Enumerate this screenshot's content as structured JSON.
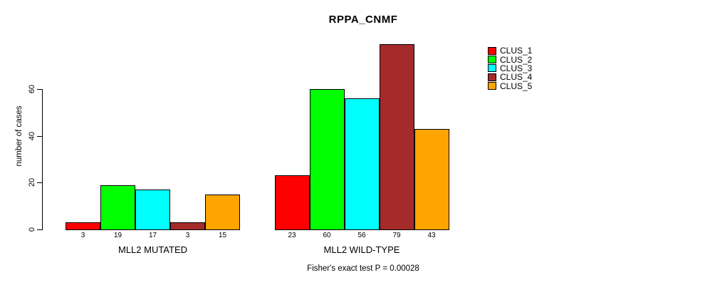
{
  "title": "RPPA_CNMF",
  "y_axis": {
    "label": "number of cases",
    "tick_labels": [
      "0",
      "20",
      "40",
      "60"
    ]
  },
  "footer": {
    "caption": "Fisher's exact test P = 0.00028"
  },
  "legend": {
    "entries": [
      {
        "label": "CLUS_1",
        "color": "#FF0000"
      },
      {
        "label": "CLUS_2",
        "color": "#00FF00"
      },
      {
        "label": "CLUS_3",
        "color": "#00FFFF"
      },
      {
        "label": "CLUS_4",
        "color": "#A52A2A"
      },
      {
        "label": "CLUS_5",
        "color": "#FFA500"
      }
    ]
  },
  "chart_data": {
    "type": "bar",
    "title": "RPPA_CNMF",
    "ylabel": "number of cases",
    "xlabel": "",
    "yticks": [
      0,
      20,
      40,
      60
    ],
    "ylim": [
      0,
      80
    ],
    "grid": false,
    "legend_position": "top-right",
    "categories": [
      "MLL2 MUTATED",
      "MLL2 WILD-TYPE"
    ],
    "series": [
      {
        "name": "CLUS_1",
        "color": "#FF0000",
        "values": [
          3,
          23
        ]
      },
      {
        "name": "CLUS_2",
        "color": "#00FF00",
        "values": [
          19,
          60
        ]
      },
      {
        "name": "CLUS_3",
        "color": "#00FFFF",
        "values": [
          17,
          56
        ]
      },
      {
        "name": "CLUS_4",
        "color": "#A52A2A",
        "values": [
          3,
          79
        ]
      },
      {
        "name": "CLUS_5",
        "color": "#FFA500",
        "values": [
          15,
          43
        ]
      }
    ],
    "bar_value_labels": [
      [
        "3",
        "19",
        "17",
        "3",
        "15"
      ],
      [
        "23",
        "60",
        "56",
        "79",
        "43"
      ]
    ],
    "annotation": "Fisher's exact test P = 0.00028"
  }
}
